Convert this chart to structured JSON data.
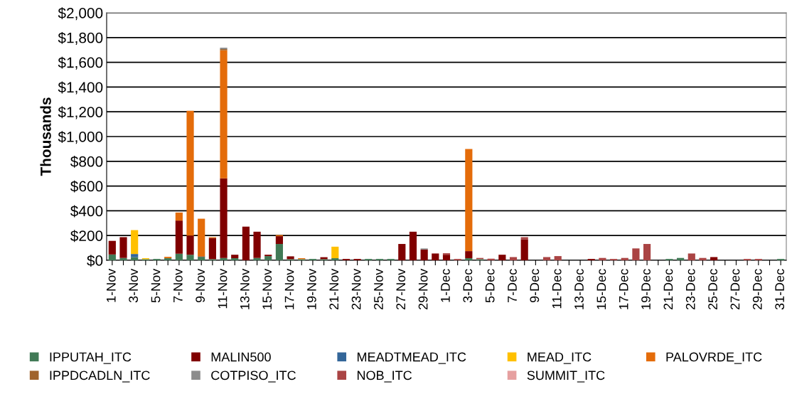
{
  "chart_data": {
    "type": "bar",
    "stacked": true,
    "ylabel": "Thousands",
    "categories": [
      "1-Nov",
      null,
      "3-Nov",
      null,
      "5-Nov",
      null,
      "7-Nov",
      null,
      "9-Nov",
      null,
      "11-Nov",
      null,
      "13-Nov",
      null,
      "15-Nov",
      null,
      "17-Nov",
      null,
      "19-Nov",
      null,
      "21-Nov",
      null,
      "23-Nov",
      null,
      "25-Nov",
      null,
      "27-Nov",
      null,
      "29-Nov",
      null,
      "1-Dec",
      null,
      "3-Dec",
      null,
      "5-Dec",
      null,
      "7-Dec",
      null,
      "9-Dec",
      null,
      "11-Dec",
      null,
      "13-Dec",
      null,
      "15-Dec",
      null,
      "17-Dec",
      null,
      "19-Dec",
      null,
      "21-Dec",
      null,
      "23-Dec",
      null,
      "25-Dec",
      null,
      "27-Dec",
      null,
      "29-Dec",
      null,
      "31-Dec"
    ],
    "series": [
      {
        "name": "IPPUTAH_ITC",
        "color": "#417a56",
        "values": [
          47,
          19,
          25,
          9,
          11,
          17,
          53,
          45,
          28,
          9,
          19,
          17,
          0,
          19,
          34,
          132,
          9,
          9,
          11,
          9,
          17,
          0,
          0,
          11,
          11,
          11,
          0,
          0,
          0,
          0,
          0,
          0,
          17,
          9,
          0,
          0,
          0,
          0,
          0,
          0,
          0,
          0,
          0,
          0,
          0,
          0,
          0,
          0,
          0,
          0,
          11,
          19,
          0,
          0,
          0,
          0,
          0,
          0,
          0,
          0,
          11
        ]
      },
      {
        "name": "MALIN500",
        "color": "#800000",
        "values": [
          110,
          168,
          0,
          0,
          0,
          0,
          268,
          155,
          4,
          171,
          644,
          28,
          272,
          212,
          11,
          63,
          23,
          0,
          0,
          16,
          0,
          11,
          11,
          0,
          0,
          0,
          132,
          231,
          87,
          55,
          45,
          0,
          57,
          0,
          0,
          45,
          0,
          170,
          0,
          0,
          0,
          0,
          0,
          11,
          0,
          0,
          0,
          0,
          0,
          0,
          0,
          0,
          0,
          0,
          26,
          0,
          0,
          0,
          0,
          0,
          0
        ]
      },
      {
        "name": "MEADTMEAD_ITC",
        "color": "#336699",
        "values": [
          0,
          0,
          26,
          0,
          0,
          0,
          0,
          0,
          0,
          0,
          0,
          0,
          0,
          0,
          0,
          0,
          0,
          0,
          0,
          0,
          0,
          0,
          0,
          0,
          0,
          0,
          0,
          0,
          0,
          0,
          0,
          0,
          0,
          0,
          0,
          0,
          0,
          0,
          0,
          0,
          0,
          0,
          0,
          0,
          0,
          0,
          0,
          0,
          0,
          0,
          0,
          0,
          0,
          0,
          0,
          0,
          0,
          0,
          0,
          0,
          0
        ]
      },
      {
        "name": "MEAD_ITC",
        "color": "#ffc000",
        "values": [
          0,
          0,
          193,
          8,
          0,
          0,
          0,
          0,
          0,
          0,
          0,
          0,
          0,
          0,
          0,
          0,
          0,
          0,
          0,
          0,
          93,
          0,
          0,
          0,
          0,
          0,
          0,
          0,
          0,
          0,
          0,
          0,
          0,
          0,
          0,
          0,
          0,
          0,
          0,
          0,
          0,
          0,
          0,
          0,
          0,
          0,
          0,
          0,
          0,
          0,
          0,
          0,
          0,
          0,
          0,
          0,
          0,
          0,
          0,
          0,
          0
        ]
      },
      {
        "name": "PALOVRDE_ITC",
        "color": "#e46c0a",
        "values": [
          0,
          0,
          0,
          0,
          0,
          11,
          65,
          1009,
          304,
          7,
          1034,
          0,
          0,
          0,
          0,
          9,
          0,
          8,
          0,
          0,
          0,
          0,
          0,
          0,
          0,
          0,
          0,
          0,
          0,
          0,
          0,
          0,
          826,
          0,
          0,
          0,
          0,
          0,
          0,
          0,
          0,
          0,
          0,
          0,
          0,
          0,
          0,
          0,
          0,
          0,
          0,
          0,
          0,
          0,
          0,
          0,
          0,
          0,
          0,
          0,
          0
        ]
      },
      {
        "name": "IPPDCADLN_ITC",
        "color": "#a0642d",
        "values": [
          0,
          0,
          0,
          0,
          0,
          0,
          0,
          0,
          0,
          0,
          10,
          0,
          0,
          0,
          0,
          0,
          0,
          0,
          0,
          0,
          0,
          0,
          0,
          0,
          0,
          0,
          0,
          0,
          0,
          0,
          0,
          0,
          0,
          0,
          0,
          0,
          0,
          0,
          0,
          0,
          0,
          0,
          0,
          0,
          0,
          0,
          0,
          0,
          0,
          0,
          0,
          0,
          0,
          0,
          0,
          0,
          0,
          0,
          0,
          0,
          0
        ]
      },
      {
        "name": "COTPISO_ITC",
        "color": "#8c8c8c",
        "values": [
          0,
          0,
          0,
          0,
          0,
          0,
          0,
          0,
          0,
          0,
          11,
          0,
          0,
          0,
          0,
          0,
          0,
          0,
          0,
          0,
          0,
          0,
          0,
          0,
          0,
          0,
          0,
          0,
          9,
          0,
          0,
          0,
          0,
          0,
          0,
          0,
          0,
          0,
          0,
          0,
          0,
          0,
          0,
          0,
          0,
          0,
          0,
          0,
          0,
          0,
          0,
          0,
          0,
          0,
          0,
          0,
          0,
          0,
          0,
          0,
          0
        ]
      },
      {
        "name": "NOB_ITC",
        "color": "#aa4444",
        "values": [
          0,
          0,
          0,
          0,
          0,
          0,
          0,
          0,
          0,
          0,
          0,
          0,
          0,
          0,
          0,
          0,
          0,
          0,
          0,
          0,
          0,
          0,
          0,
          0,
          0,
          0,
          0,
          0,
          0,
          0,
          12,
          11,
          0,
          10,
          13,
          0,
          26,
          17,
          0,
          26,
          34,
          0,
          0,
          0,
          19,
          11,
          19,
          96,
          132,
          0,
          0,
          0,
          55,
          19,
          0,
          0,
          0,
          11,
          11,
          0,
          0
        ]
      },
      {
        "name": "SUMMIT_ITC",
        "color": "#e6a0a0",
        "values": [
          0,
          0,
          0,
          0,
          0,
          0,
          0,
          0,
          0,
          0,
          0,
          0,
          0,
          0,
          0,
          0,
          0,
          0,
          0,
          0,
          0,
          0,
          0,
          0,
          0,
          0,
          0,
          0,
          0,
          0,
          0,
          0,
          0,
          0,
          0,
          0,
          0,
          0,
          0,
          0,
          0,
          0,
          0,
          0,
          0,
          0,
          0,
          0,
          0,
          0,
          0,
          0,
          0,
          0,
          0,
          0,
          0,
          0,
          0,
          0,
          0
        ]
      }
    ],
    "ylim": [
      0,
      2000
    ],
    "yticks": [
      {
        "value": 0,
        "label": "$0"
      },
      {
        "value": 200,
        "label": "$200"
      },
      {
        "value": 400,
        "label": "$400"
      },
      {
        "value": 600,
        "label": "$600"
      },
      {
        "value": 800,
        "label": "$800"
      },
      {
        "value": 1000,
        "label": "$1,000"
      },
      {
        "value": 1200,
        "label": "$1,200"
      },
      {
        "value": 1400,
        "label": "$1,400"
      },
      {
        "value": 1600,
        "label": "$1,600"
      },
      {
        "value": 1800,
        "label": "$1,800"
      },
      {
        "value": 2000,
        "label": "$2,000"
      }
    ],
    "grid": "y",
    "legend": "bottom"
  }
}
